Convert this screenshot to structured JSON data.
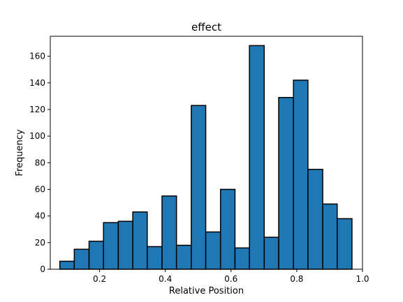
{
  "chart_data": {
    "type": "bar",
    "title": "effect",
    "xlabel": "Relative Position",
    "ylabel": "Frequency",
    "xlim": [
      0.05,
      1.0
    ],
    "ylim": [
      0,
      175
    ],
    "xticks": [
      0.2,
      0.4,
      0.6,
      0.8,
      1.0
    ],
    "xtick_labels": [
      "0.2",
      "0.4",
      "0.6",
      "0.8",
      "1.0"
    ],
    "yticks": [
      0,
      20,
      40,
      60,
      80,
      100,
      120,
      140,
      160
    ],
    "ytick_labels": [
      "0",
      "20",
      "40",
      "60",
      "80",
      "100",
      "120",
      "140",
      "160"
    ],
    "bin_edges": [
      0.079,
      0.123,
      0.168,
      0.212,
      0.257,
      0.301,
      0.345,
      0.39,
      0.434,
      0.479,
      0.523,
      0.568,
      0.612,
      0.656,
      0.701,
      0.745,
      0.79,
      0.834,
      0.879,
      0.923,
      0.968
    ],
    "values": [
      6,
      15,
      21,
      35,
      36,
      43,
      17,
      55,
      18,
      123,
      28,
      60,
      16,
      168,
      24,
      129,
      142,
      75,
      49,
      38
    ],
    "bar_color": "#1f77b4",
    "edge_color": "#000000",
    "grid": false
  }
}
